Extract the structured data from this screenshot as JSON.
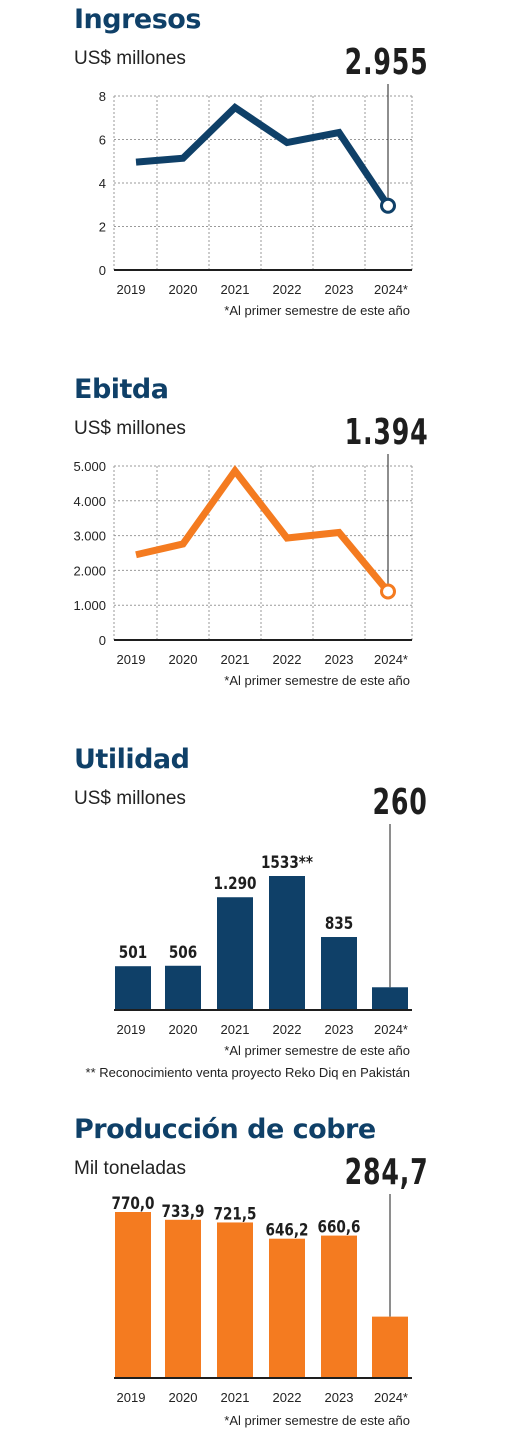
{
  "colors": {
    "navy": "#0f4068",
    "orange": "#f47b20",
    "grid": "#9a9a9a",
    "axis": "#1e1e1e"
  },
  "charts": [
    {
      "title": "Ingresos",
      "unit": "US$ millones",
      "highlight": "2.955",
      "note": "*Al primer semestre de este año"
    },
    {
      "title": "Ebitda",
      "unit": "US$ millones",
      "highlight": "1.394",
      "note": "*Al primer semestre de este año"
    },
    {
      "title": "Utilidad",
      "unit": "US$ millones",
      "highlight": "260",
      "note": "*Al primer semestre de este año",
      "note2": "** Reconocimiento venta proyecto Reko Diq en Pakistán"
    },
    {
      "title": "Producción de cobre",
      "unit": "Mil toneladas",
      "highlight": "284,7",
      "note": "*Al primer semestre de este año"
    }
  ],
  "chart_data": [
    {
      "type": "line",
      "title": "Ingresos",
      "ylabel": "US$ millones",
      "categories": [
        "2019",
        "2020",
        "2021",
        "2022",
        "2023",
        "2024*"
      ],
      "series": [
        {
          "values": [
            4.96,
            5.14,
            7.47,
            5.86,
            6.32,
            2.955
          ]
        }
      ],
      "ylim": [
        0,
        8
      ],
      "yticks": [
        "0",
        "2",
        "4",
        "6",
        "8"
      ],
      "grid": true,
      "color": "navy"
    },
    {
      "type": "line",
      "title": "Ebitda",
      "ylabel": "US$ millones",
      "categories": [
        "2019",
        "2020",
        "2021",
        "2022",
        "2023",
        "2024*"
      ],
      "series": [
        {
          "values": [
            2450,
            2760,
            4860,
            2930,
            3090,
            1394
          ]
        }
      ],
      "ylim": [
        0,
        5000
      ],
      "yticks": [
        "0",
        "1.000",
        "2.000",
        "3.000",
        "4.000",
        "5.000"
      ],
      "grid": true,
      "color": "orange"
    },
    {
      "type": "bar",
      "title": "Utilidad",
      "ylabel": "US$ millones",
      "categories": [
        "2019",
        "2020",
        "2021",
        "2022",
        "2023",
        "2024*"
      ],
      "values": [
        501,
        506,
        1290,
        1533,
        835,
        260
      ],
      "labels": [
        "501",
        "506",
        "1.290",
        "1533**",
        "835",
        ""
      ],
      "ylim": [
        0,
        1533
      ],
      "grid": false,
      "color": "navy"
    },
    {
      "type": "bar",
      "title": "Producción de cobre",
      "ylabel": "Mil toneladas",
      "categories": [
        "2019",
        "2020",
        "2021",
        "2022",
        "2023",
        "2024*"
      ],
      "values": [
        770.0,
        733.9,
        721.5,
        646.2,
        660.6,
        284.7
      ],
      "labels": [
        "770,0",
        "733,9",
        "721,5",
        "646,2",
        "660,6",
        ""
      ],
      "ylim": [
        0,
        770
      ],
      "grid": false,
      "color": "orange"
    }
  ]
}
